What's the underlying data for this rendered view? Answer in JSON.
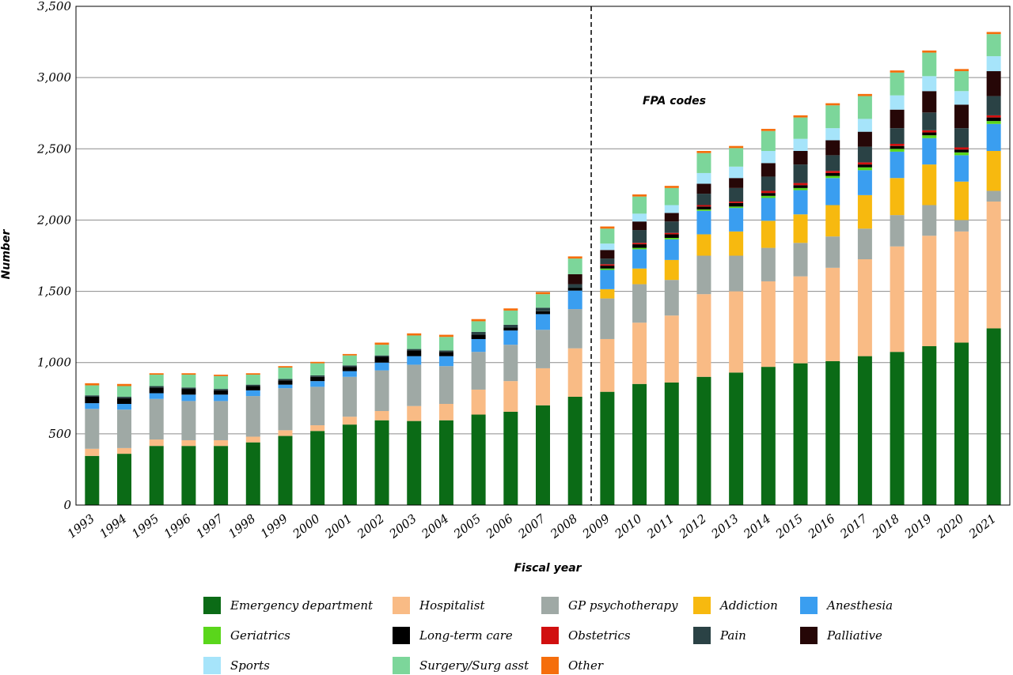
{
  "chart_data": {
    "type": "bar",
    "stacked": true,
    "title": "",
    "xlabel": "Fiscal year",
    "ylabel": "Number",
    "ylim": [
      0,
      3500
    ],
    "yticks": [
      0,
      500,
      1000,
      1500,
      2000,
      2500,
      3000,
      3500
    ],
    "ytick_labels": [
      "0",
      "500",
      "1,000",
      "1,500",
      "2,000",
      "2,500",
      "3,000",
      "3,500"
    ],
    "grid": "horizontal",
    "legend_position": "bottom",
    "annotation": {
      "text": "FPA codes",
      "divider_between": [
        "2008",
        "2009"
      ]
    },
    "categories": [
      "1993",
      "1994",
      "1995",
      "1996",
      "1997",
      "1998",
      "1999",
      "2000",
      "2001",
      "2002",
      "2003",
      "2004",
      "2005",
      "2006",
      "2007",
      "2008",
      "2009",
      "2010",
      "2011",
      "2012",
      "2013",
      "2014",
      "2015",
      "2016",
      "2017",
      "2018",
      "2019",
      "2020",
      "2021"
    ],
    "series": [
      {
        "name": "Emergency department",
        "color": "#0b6b16",
        "values": [
          345,
          360,
          415,
          415,
          415,
          440,
          485,
          520,
          565,
          595,
          590,
          595,
          635,
          655,
          700,
          760,
          795,
          850,
          860,
          900,
          930,
          970,
          995,
          1010,
          1045,
          1075,
          1115,
          1140,
          1240
        ]
      },
      {
        "name": "Hospitalist",
        "color": "#f9bb85",
        "values": [
          50,
          40,
          45,
          40,
          40,
          40,
          40,
          40,
          55,
          65,
          105,
          115,
          175,
          215,
          260,
          340,
          370,
          430,
          470,
          580,
          570,
          600,
          610,
          655,
          680,
          740,
          775,
          780,
          890
        ]
      },
      {
        "name": "GP psychotherapy",
        "color": "#9fa9a5",
        "values": [
          280,
          270,
          285,
          275,
          275,
          285,
          295,
          270,
          280,
          285,
          290,
          265,
          265,
          255,
          270,
          275,
          285,
          270,
          250,
          270,
          250,
          235,
          235,
          220,
          215,
          220,
          215,
          80,
          75
        ]
      },
      {
        "name": "Addiction",
        "color": "#f7b90f",
        "values": [
          0,
          0,
          0,
          0,
          0,
          0,
          0,
          0,
          0,
          0,
          0,
          0,
          0,
          0,
          0,
          0,
          65,
          110,
          140,
          150,
          170,
          190,
          200,
          220,
          235,
          260,
          285,
          270,
          280
        ]
      },
      {
        "name": "Anesthesia",
        "color": "#3a9ef0",
        "values": [
          40,
          40,
          40,
          45,
          45,
          40,
          25,
          40,
          40,
          55,
          60,
          70,
          90,
          100,
          110,
          130,
          135,
          135,
          145,
          165,
          165,
          160,
          170,
          190,
          175,
          185,
          185,
          185,
          190
        ]
      },
      {
        "name": "Geriatrics",
        "color": "#5ad61b",
        "values": [
          0,
          0,
          0,
          0,
          0,
          0,
          0,
          0,
          0,
          0,
          0,
          0,
          0,
          0,
          0,
          0,
          10,
          10,
          10,
          10,
          10,
          15,
          15,
          15,
          20,
          20,
          20,
          20,
          20
        ]
      },
      {
        "name": "Long-term care",
        "color": "#000000",
        "values": [
          45,
          40,
          40,
          40,
          30,
          30,
          30,
          30,
          30,
          40,
          40,
          30,
          30,
          20,
          20,
          20,
          20,
          25,
          25,
          20,
          25,
          20,
          20,
          20,
          20,
          20,
          20,
          20,
          25
        ]
      },
      {
        "name": "Obstetrics",
        "color": "#d10f0f",
        "values": [
          0,
          0,
          0,
          0,
          0,
          0,
          0,
          0,
          0,
          0,
          0,
          0,
          0,
          0,
          0,
          0,
          10,
          10,
          10,
          10,
          10,
          15,
          15,
          15,
          15,
          15,
          15,
          15,
          15
        ]
      },
      {
        "name": "Pain",
        "color": "#2a4245",
        "values": [
          10,
          10,
          10,
          10,
          10,
          10,
          10,
          10,
          10,
          10,
          10,
          10,
          20,
          20,
          25,
          25,
          40,
          90,
          80,
          80,
          95,
          100,
          130,
          110,
          110,
          110,
          125,
          135,
          135
        ]
      },
      {
        "name": "Palliative",
        "color": "#260707",
        "values": [
          0,
          0,
          0,
          0,
          0,
          0,
          0,
          0,
          0,
          0,
          0,
          0,
          0,
          0,
          0,
          70,
          60,
          60,
          60,
          70,
          70,
          95,
          95,
          105,
          105,
          130,
          150,
          165,
          175
        ]
      },
      {
        "name": "Sports",
        "color": "#a6e4fa",
        "values": [
          0,
          0,
          0,
          0,
          0,
          0,
          0,
          0,
          0,
          0,
          0,
          0,
          0,
          0,
          0,
          0,
          45,
          55,
          55,
          75,
          80,
          85,
          85,
          85,
          90,
          100,
          105,
          95,
          105
        ]
      },
      {
        "name": "Surgery/Surg asst",
        "color": "#7cd69a",
        "values": [
          70,
          75,
          80,
          90,
          90,
          70,
          80,
          85,
          70,
          75,
          95,
          95,
          75,
          100,
          95,
          110,
          105,
          120,
          120,
          140,
          130,
          140,
          150,
          160,
          160,
          160,
          165,
          140,
          155
        ]
      },
      {
        "name": "Other",
        "color": "#f56e0c",
        "values": [
          15,
          15,
          10,
          10,
          10,
          10,
          10,
          10,
          10,
          15,
          15,
          15,
          15,
          15,
          15,
          15,
          15,
          15,
          15,
          15,
          15,
          15,
          15,
          15,
          15,
          15,
          15,
          15,
          15
        ]
      }
    ]
  }
}
